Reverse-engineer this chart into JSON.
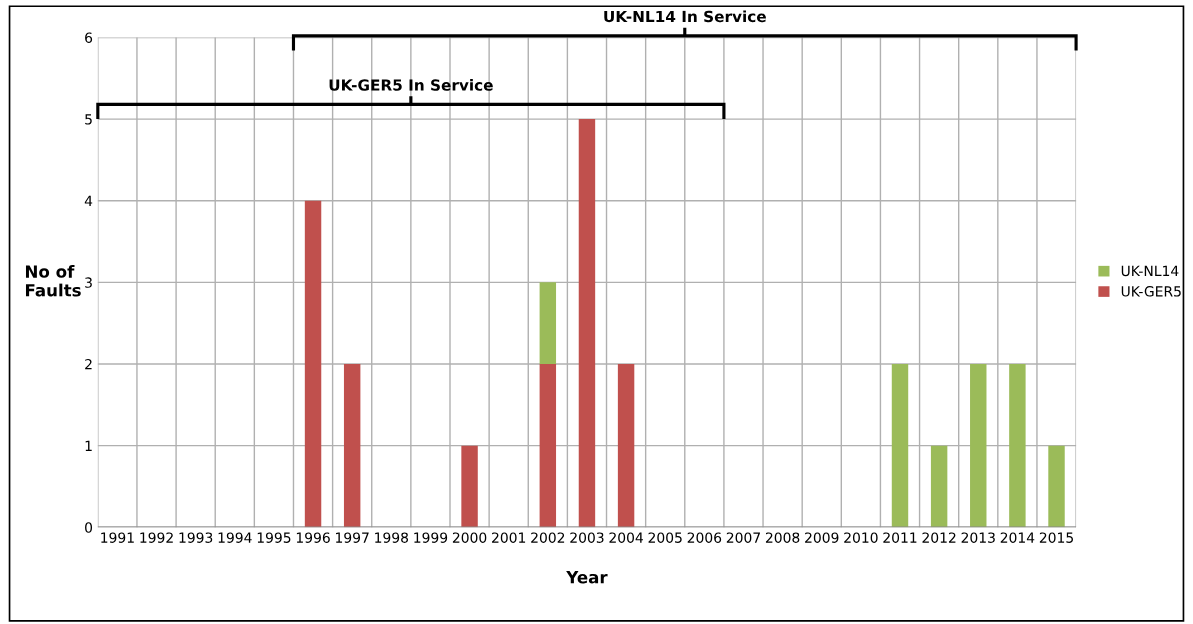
{
  "chart_data": {
    "type": "bar",
    "stacked": true,
    "categories": [
      "1991",
      "1992",
      "1993",
      "1994",
      "1995",
      "1996",
      "1997",
      "1998",
      "1999",
      "2000",
      "2001",
      "2002",
      "2003",
      "2004",
      "2005",
      "2006",
      "2007",
      "2008",
      "2009",
      "2010",
      "2011",
      "2012",
      "2013",
      "2014",
      "2015"
    ],
    "series": [
      {
        "name": "UK-GER5",
        "color": "#c0504d",
        "values": [
          0,
          0,
          0,
          0,
          0,
          4,
          2,
          0,
          0,
          1,
          0,
          2,
          5,
          2,
          0,
          0,
          0,
          0,
          0,
          0,
          0,
          0,
          0,
          0,
          0
        ]
      },
      {
        "name": "UK-NL14",
        "color": "#9bbb59",
        "values": [
          0,
          0,
          0,
          0,
          0,
          0,
          0,
          0,
          0,
          0,
          0,
          1,
          0,
          0,
          0,
          0,
          0,
          0,
          0,
          0,
          2,
          1,
          2,
          2,
          1
        ]
      }
    ],
    "xlabel": "Year",
    "ylabel": "No of\nFaults",
    "ylim": [
      0,
      6
    ],
    "yticks": [
      0,
      1,
      2,
      3,
      4,
      5,
      6
    ],
    "grid": true,
    "legend": "right",
    "annotations": [
      "UK-NL14 In Service",
      "UK-GER5 In Service"
    ]
  }
}
